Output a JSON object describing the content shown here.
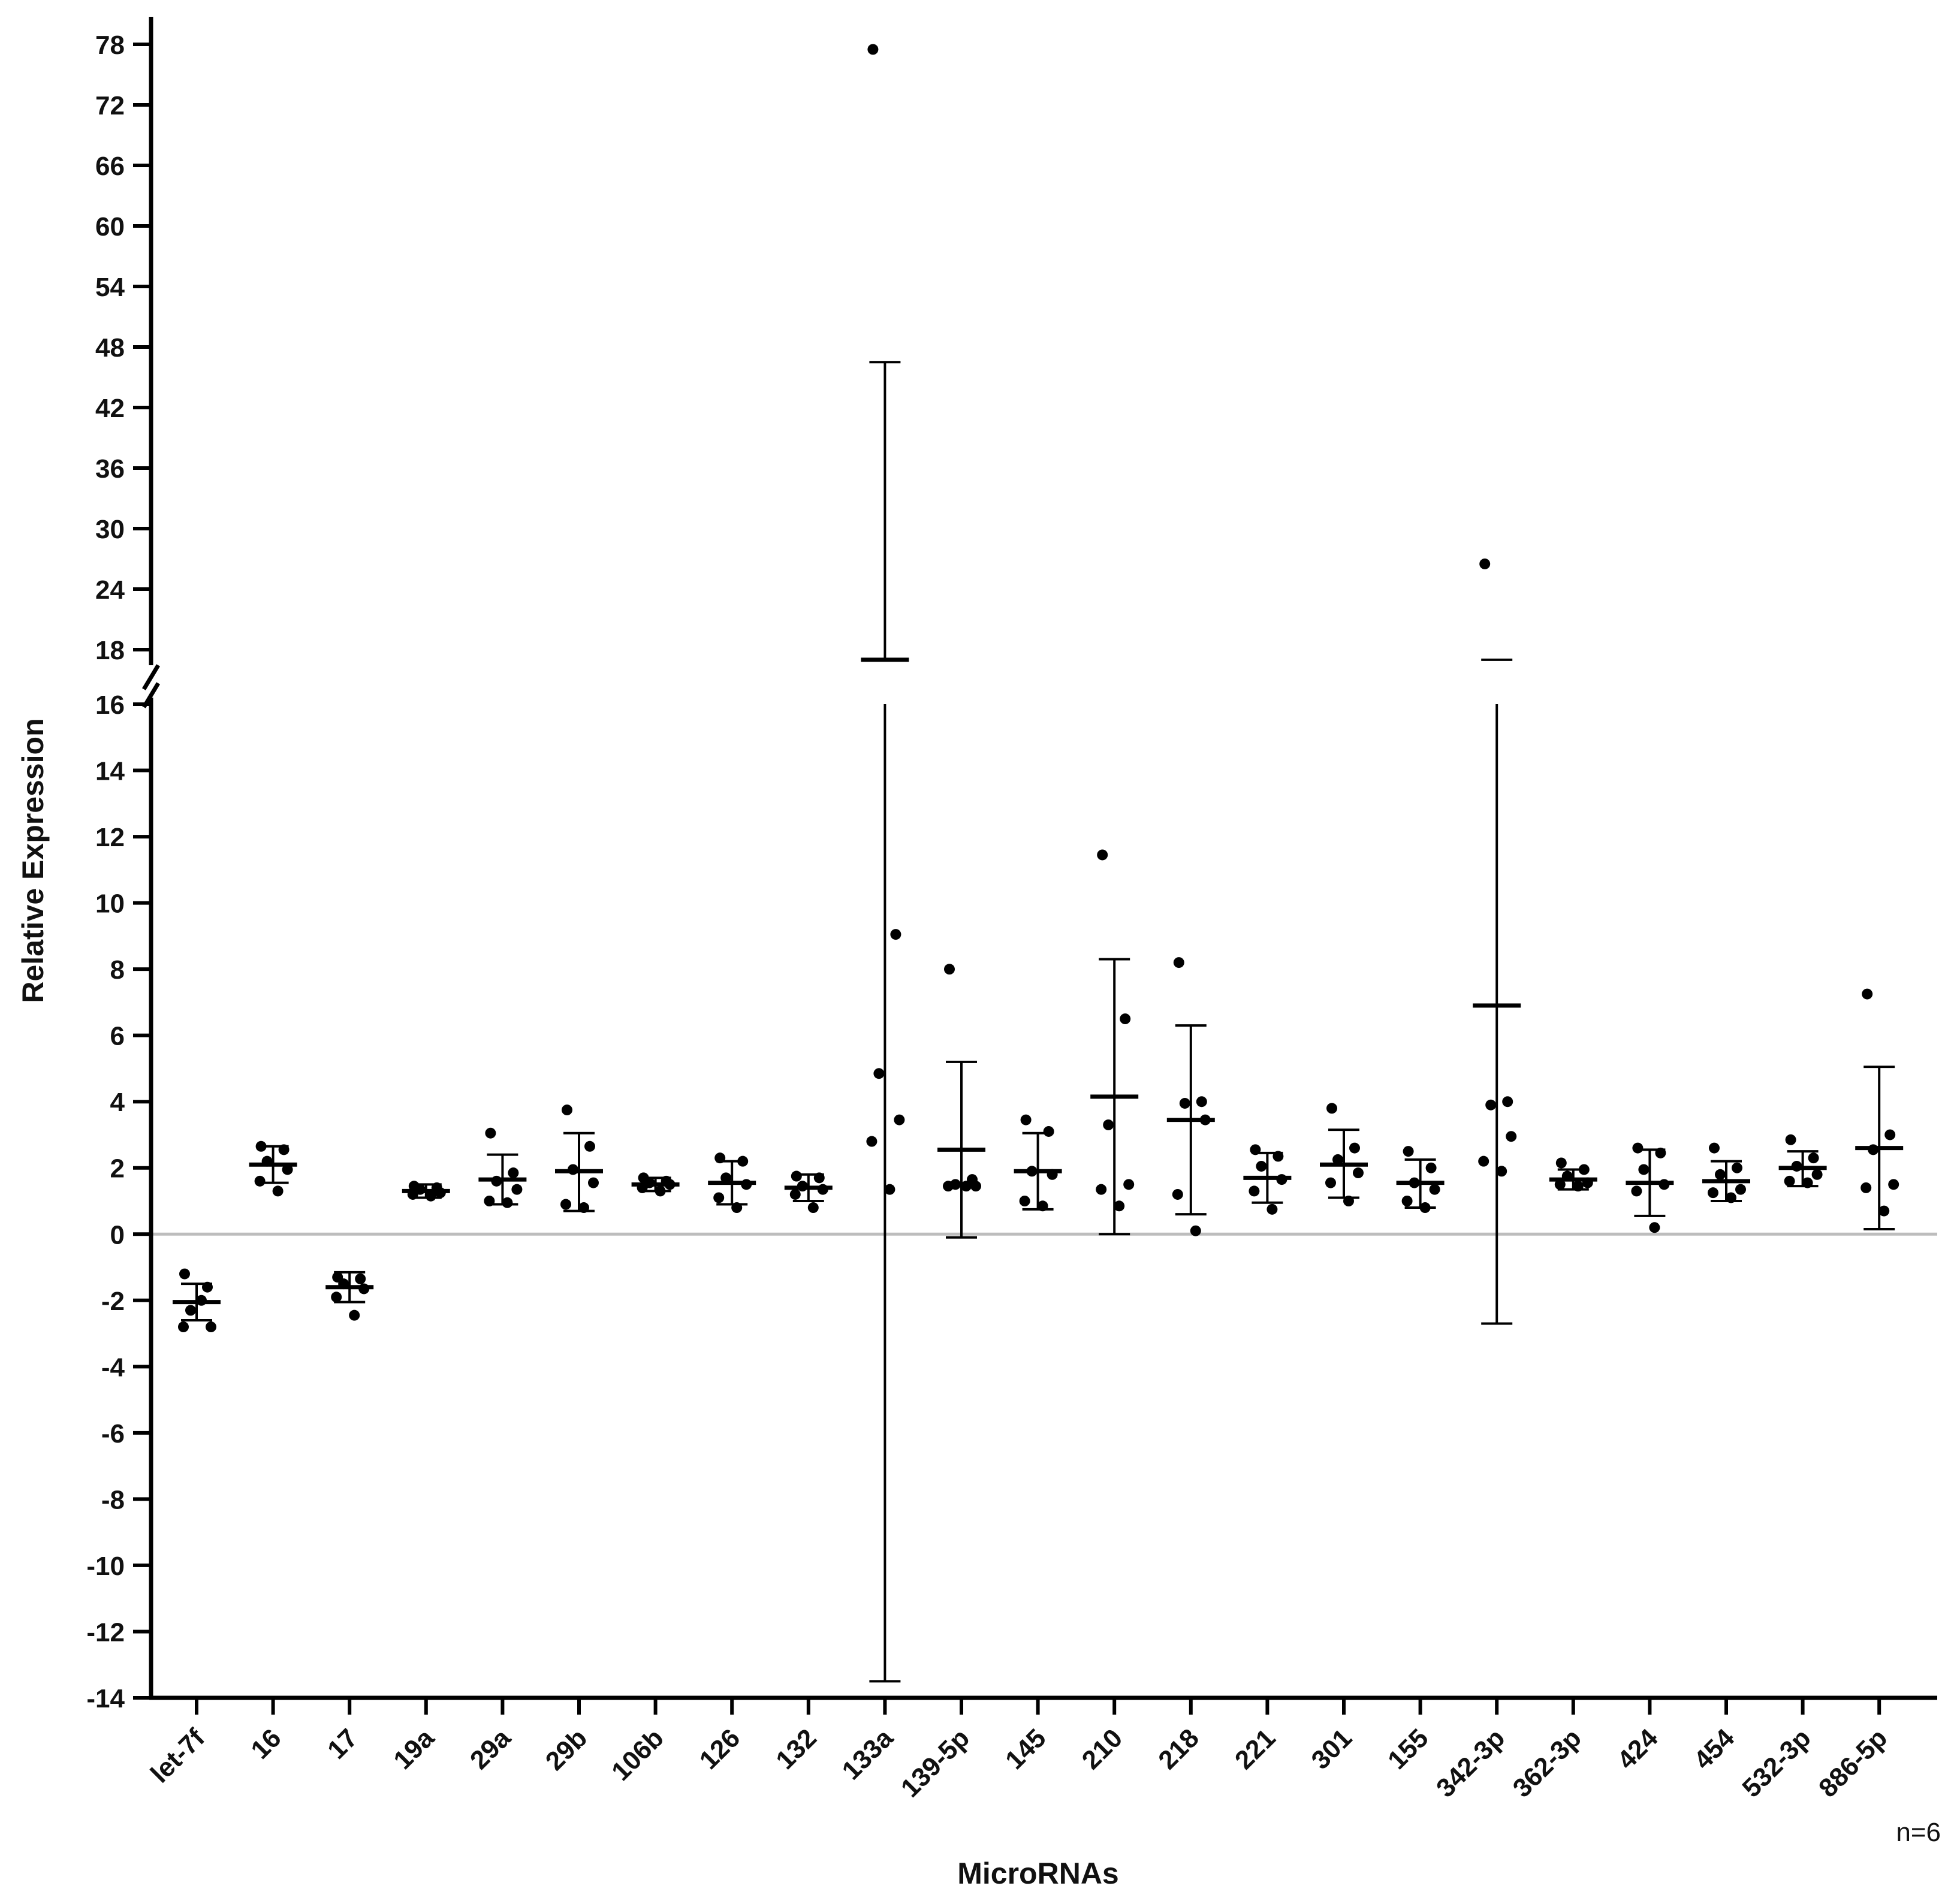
{
  "chart_data": {
    "type": "scatter",
    "title": "",
    "xlabel": "MicroRNAs",
    "ylabel": "Relative Expression",
    "note": "n=6",
    "y_axis_break": {
      "lower_segment": [
        -14,
        16
      ],
      "upper_segment": [
        16,
        80
      ]
    },
    "y_ticks_lower": [
      "-14",
      "-12",
      "-10",
      "-8",
      "-6",
      "-4",
      "-2",
      "0",
      "2",
      "4",
      "6",
      "8",
      "10",
      "12",
      "14",
      "16"
    ],
    "y_ticks_upper": [
      "18",
      "24",
      "30",
      "36",
      "42",
      "48",
      "54",
      "60",
      "66",
      "72",
      "78"
    ],
    "zero_line": true,
    "error_bar_style": "mean with SD whiskers",
    "categories": [
      "let-7f",
      "16",
      "17",
      "19a",
      "29a",
      "29b",
      "106b",
      "126",
      "132",
      "133a",
      "139-5p",
      "145",
      "210",
      "218",
      "221",
      "301",
      "155",
      "342-3p",
      "362-3p",
      "424",
      "454",
      "532-3p",
      "886-5p"
    ],
    "means": [
      -2.05,
      2.1,
      -1.6,
      1.3,
      1.65,
      1.9,
      1.5,
      1.55,
      1.4,
      17.0,
      2.55,
      1.9,
      4.15,
      3.45,
      1.7,
      2.1,
      1.55,
      6.9,
      1.65,
      1.55,
      1.6,
      2.0,
      2.6
    ],
    "sd_low": [
      -2.6,
      1.55,
      -2.05,
      1.1,
      0.9,
      0.7,
      1.3,
      0.9,
      1.0,
      -13.5,
      -0.1,
      0.75,
      0.0,
      0.6,
      0.95,
      1.1,
      0.8,
      -2.7,
      1.35,
      0.55,
      1.0,
      1.45,
      0.15
    ],
    "sd_high": [
      -1.5,
      2.65,
      -1.15,
      1.5,
      2.4,
      3.05,
      1.7,
      2.2,
      1.8,
      46.5,
      5.2,
      3.05,
      8.3,
      6.3,
      2.45,
      3.15,
      2.25,
      17.0,
      1.95,
      2.55,
      2.2,
      2.5,
      5.05
    ],
    "points": [
      [
        -1.2,
        -1.6,
        -2.3,
        -2.8,
        -2.8,
        -2.0
      ],
      [
        2.65,
        2.55,
        2.2,
        1.95,
        1.6,
        1.3
      ],
      [
        -1.3,
        -1.35,
        -1.5,
        -1.65,
        -1.9,
        -2.45
      ],
      [
        1.45,
        1.4,
        1.35,
        1.25,
        1.2,
        1.15
      ],
      [
        3.05,
        1.85,
        1.6,
        1.35,
        1.0,
        0.95
      ],
      [
        3.75,
        2.65,
        1.95,
        1.55,
        0.9,
        0.8
      ],
      [
        1.7,
        1.6,
        1.55,
        1.5,
        1.4,
        1.3
      ],
      [
        2.3,
        2.2,
        1.7,
        1.5,
        1.1,
        0.8
      ],
      [
        1.75,
        1.7,
        1.45,
        1.35,
        1.2,
        0.8
      ],
      [
        77.5,
        9.05,
        4.85,
        3.45,
        2.8,
        1.35
      ],
      [
        8.0,
        1.65,
        1.5,
        1.45,
        1.45,
        1.45
      ],
      [
        3.45,
        3.1,
        1.9,
        1.8,
        1.0,
        0.85
      ],
      [
        11.45,
        6.5,
        3.3,
        1.5,
        1.35,
        0.85
      ],
      [
        8.2,
        4.0,
        3.95,
        3.45,
        1.2,
        0.1
      ],
      [
        2.55,
        2.35,
        2.05,
        1.65,
        1.3,
        0.75
      ],
      [
        3.8,
        2.6,
        2.25,
        1.85,
        1.55,
        1.0
      ],
      [
        2.5,
        2.0,
        1.55,
        1.35,
        1.0,
        0.8
      ],
      [
        26.5,
        4.0,
        3.9,
        2.95,
        2.2,
        1.9
      ],
      [
        2.15,
        1.95,
        1.75,
        1.55,
        1.5,
        1.45
      ],
      [
        2.6,
        2.45,
        1.95,
        1.5,
        1.3,
        0.2
      ],
      [
        2.6,
        2.0,
        1.8,
        1.35,
        1.25,
        1.1
      ],
      [
        2.85,
        2.3,
        2.05,
        1.8,
        1.6,
        1.55
      ],
      [
        7.25,
        3.0,
        2.55,
        1.5,
        1.4,
        0.7
      ]
    ]
  }
}
